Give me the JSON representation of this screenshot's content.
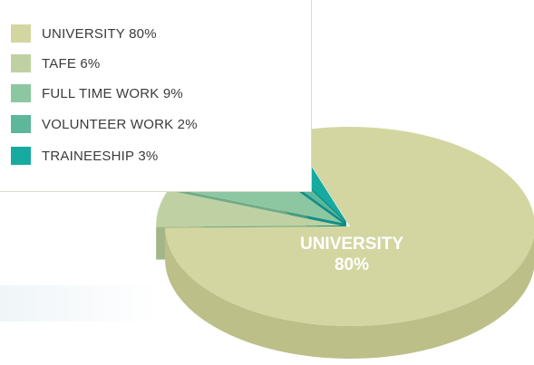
{
  "chart_data": {
    "type": "pie",
    "title": "",
    "slices": [
      {
        "label": "UNIVERSITY",
        "value": 80,
        "legend": "UNIVERSITY 80%",
        "color": "#d3d6a0",
        "side": "#bcbf88"
      },
      {
        "label": "TAFE",
        "value": 6,
        "legend": "TAFE 6%",
        "color": "#bfd1a3",
        "side": "#a3b687"
      },
      {
        "label": "FULL TIME WORK",
        "value": 9,
        "legend": "FULL TIME WORK 9%",
        "color": "#8cc7a2",
        "side": "#6fab87"
      },
      {
        "label": "VOLUNTEER WORK",
        "value": 2,
        "legend": "VOLUNTEER WORK 2%",
        "color": "#5cb79b",
        "side": "#459b81"
      },
      {
        "label": "TRAINEESHIP",
        "value": 3,
        "legend": "TRAINEESHIP 3%",
        "color": "#17aaa0",
        "side": "#0f8e86"
      }
    ],
    "center_label": {
      "name": "UNIVERSITY",
      "percent": "80%"
    },
    "legend_position": "top-left"
  }
}
